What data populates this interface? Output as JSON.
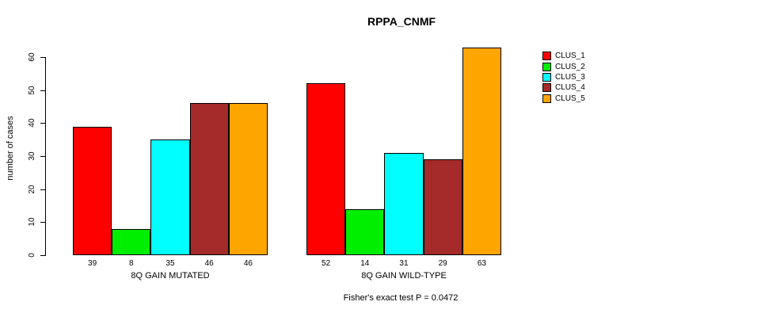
{
  "title": "RPPA_CNMF",
  "footer": "Fisher's exact test P = 0.0472",
  "chart_data": {
    "type": "bar",
    "title": "RPPA_CNMF",
    "xlabel": "",
    "ylabel": "number of cases",
    "ylim": [
      0,
      63
    ],
    "y_ticks": [
      0,
      10,
      20,
      30,
      40,
      50,
      60
    ],
    "grid": false,
    "legend_position": "right-outside",
    "bar_value_labels_shown": true,
    "annotation": "Fisher's exact test P = 0.0472",
    "categories": [
      "8Q GAIN MUTATED",
      "8Q GAIN WILD-TYPE"
    ],
    "series": [
      {
        "name": "CLUS_1",
        "color": "#FF0000",
        "values": [
          39,
          52
        ]
      },
      {
        "name": "CLUS_2",
        "color": "#00EE00",
        "values": [
          8,
          14
        ]
      },
      {
        "name": "CLUS_3",
        "color": "#00FFFF",
        "values": [
          35,
          31
        ]
      },
      {
        "name": "CLUS_4",
        "color": "#A52A2A",
        "values": [
          46,
          29
        ]
      },
      {
        "name": "CLUS_5",
        "color": "#FFA500",
        "values": [
          46,
          63
        ]
      }
    ]
  }
}
